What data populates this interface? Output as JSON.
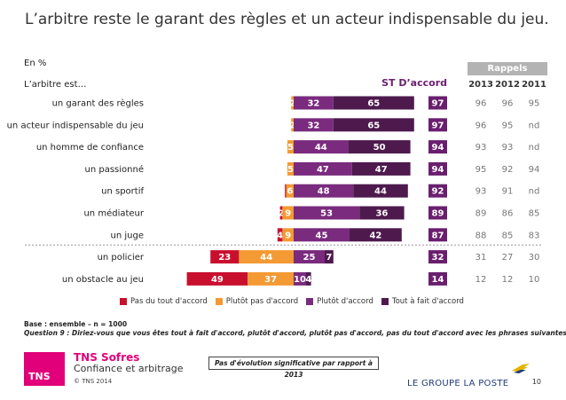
{
  "title": "L’arbitre reste le garant des règles et un acteur indispensable du jeu.",
  "unit_label": "En %",
  "subtitle": "L’arbitre est…",
  "st_header": "ST D’accord",
  "rappels_header": "Rappels",
  "years": [
    "2013",
    "2012",
    "2011"
  ],
  "legend": [
    {
      "name": "Pas du tout d'accord",
      "color": "#c8102e"
    },
    {
      "name": "Plutôt pas d'accord",
      "color": "#f39a34"
    },
    {
      "name": "Plutôt d'accord",
      "color": "#7a2b7e"
    },
    {
      "name": "Tout à fait d'accord",
      "color": "#4e1a4e"
    }
  ],
  "chart_data": {
    "type": "bar",
    "orientation": "diverging-horizontal-stacked",
    "categories": [
      "un garant des règles",
      "un acteur indispensable du jeu",
      "un homme de confiance",
      "un passionné",
      "un sportif",
      "un médiateur",
      "un juge",
      "un policier",
      "un obstacle au jeu"
    ],
    "series": [
      {
        "name": "Pas du tout d'accord",
        "values": [
          null,
          null,
          null,
          null,
          1,
          2,
          4,
          23,
          49
        ]
      },
      {
        "name": "Plutôt pas d'accord",
        "values": [
          2,
          2,
          5,
          5,
          6,
          9,
          9,
          44,
          37
        ]
      },
      {
        "name": "Plutôt d'accord",
        "values": [
          32,
          32,
          44,
          47,
          48,
          53,
          45,
          25,
          10
        ]
      },
      {
        "name": "Tout à fait d'accord",
        "values": [
          65,
          65,
          50,
          47,
          44,
          36,
          42,
          7,
          4
        ]
      }
    ],
    "labels_neg2": [
      "",
      "",
      "",
      "",
      "",
      "2",
      "4",
      "23",
      "49"
    ],
    "labels_neg1": [
      "2",
      "2",
      "5",
      "5",
      "6",
      "9",
      "9",
      "44",
      "37"
    ],
    "labels_pos1": [
      "32",
      "32",
      "44",
      "47",
      "48",
      "53",
      "45",
      "25",
      "10"
    ],
    "labels_pos2": [
      "65",
      "65",
      "50",
      "47",
      "44",
      "36",
      "42",
      "7",
      "4"
    ],
    "st_values": [
      97,
      97,
      94,
      94,
      92,
      89,
      87,
      32,
      14
    ],
    "rappels": [
      [
        "96",
        "96",
        "95"
      ],
      [
        "96",
        "95",
        "nd"
      ],
      [
        "93",
        "93",
        "nd"
      ],
      [
        "95",
        "92",
        "94"
      ],
      [
        "93",
        "91",
        "nd"
      ],
      [
        "89",
        "86",
        "85"
      ],
      [
        "88",
        "85",
        "83"
      ],
      [
        "31",
        "27",
        "30"
      ],
      [
        "12",
        "12",
        "10"
      ]
    ]
  },
  "notes": {
    "base": "Base : ensemble – n = 1000",
    "question": "Question 9 : Diriez-vous que vous êtes tout à fait d'accord, plutôt d'accord, plutôt pas d'accord, pas du tout d'accord avec les phrases suivantes."
  },
  "footer": {
    "logo_text": "TNS",
    "brand": "TNS Sofres",
    "brand_sub": "Confiance et arbitrage",
    "copyright": "© TNS 2014",
    "evolution_note": "Pas d'évolution significative par rapport à 2013",
    "partner": "LE GROUPE LA POSTE",
    "page": "10"
  },
  "colors": {
    "st_box": "#6a1f6e",
    "rappels_bg": "#b3b3b3",
    "tns_pink": "#e2007a",
    "laposte_blue": "#1f3a7a"
  }
}
